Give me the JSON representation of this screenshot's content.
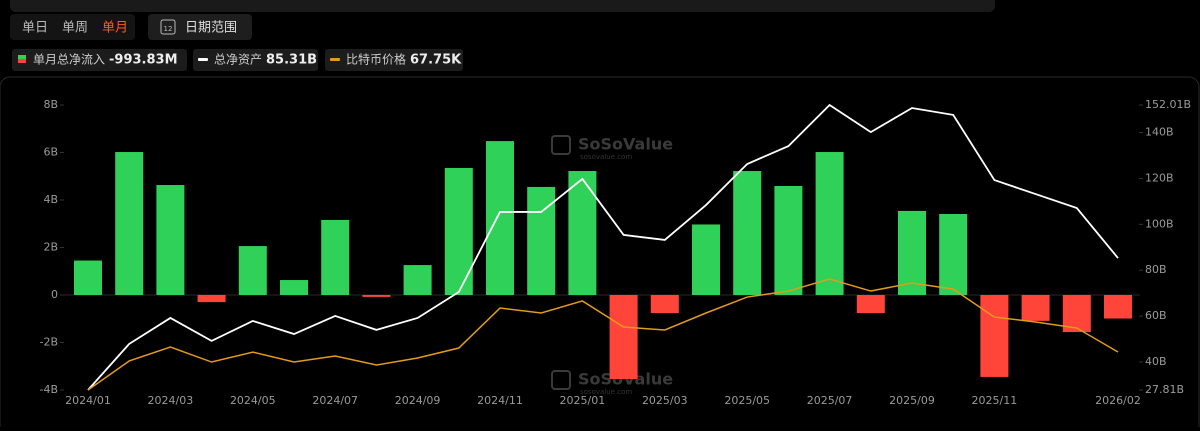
{
  "toolbar": {
    "tabs": [
      "单日",
      "单周",
      "单月"
    ],
    "active_tab": 2,
    "date_button": "日期范围",
    "calendar_day": "12"
  },
  "chart_data": {
    "type": "bar_line",
    "legend": [
      {
        "name": "单月总净流入",
        "value_label": "-993.83M"
      },
      {
        "name": "总净资产",
        "value_label": "85.31B"
      },
      {
        "name": "比特币价格",
        "value_label": "67.75K"
      }
    ],
    "watermark": "SoSoValue",
    "watermark_sub": "sosovalue.com",
    "categories": [
      "2024/01",
      null,
      "2024/03",
      null,
      "2024/05",
      null,
      "2024/07",
      null,
      "2024/09",
      null,
      "2024/11",
      null,
      "2025/01",
      null,
      "2025/03",
      null,
      "2025/05",
      null,
      "2025/07",
      null,
      "2025/09",
      null,
      "2025/11",
      null,
      null,
      "2026/02"
    ],
    "ylim": [
      -4,
      8
    ],
    "yticks": [
      {
        "value": 8,
        "label": "8B"
      },
      {
        "value": 6,
        "label": "6B"
      },
      {
        "value": 4,
        "label": "4B"
      },
      {
        "value": 2,
        "label": "2B"
      },
      0,
      {
        "value": -2,
        "label": "-2B"
      },
      {
        "value": -4,
        "label": "-4B"
      }
    ],
    "y2lim": [
      27.81,
      152.01
    ],
    "y2ticks": [
      {
        "value": 152.01,
        "label": "152.01B"
      },
      {
        "value": 140,
        "label": "140B"
      },
      {
        "value": 120,
        "label": "120B"
      },
      {
        "value": 100,
        "label": "100B"
      },
      {
        "value": 80,
        "label": "80B"
      },
      {
        "value": 60,
        "label": "60B"
      },
      {
        "value": 40,
        "label": "40B"
      },
      {
        "value": 27.81,
        "label": "27.81B"
      }
    ],
    "y3lim": [
      42.5,
      232
    ],
    "positive_color": "#30d158",
    "negative_color": "#ff453a",
    "series": [
      {
        "name": "单月总净流入",
        "kind": "bar",
        "values": [
          1.45,
          6.02,
          4.63,
          -0.3,
          2.06,
          0.63,
          3.16,
          -0.08,
          1.26,
          5.35,
          6.48,
          4.55,
          5.22,
          -3.54,
          -0.76,
          2.97,
          5.22,
          4.59,
          6.02,
          -0.76,
          3.54,
          3.41,
          -3.45,
          -1.09,
          -1.56,
          -0.99
        ]
      },
      {
        "name": "总净资产",
        "kind": "line",
        "axis": "y2",
        "color": "#ffffff",
        "values": [
          27.81,
          47.9,
          59.2,
          49.2,
          57.9,
          52.2,
          60.1,
          54.0,
          59.2,
          70.5,
          105.4,
          105.4,
          119.8,
          95.4,
          93.2,
          108.4,
          126.3,
          134.1,
          152.0,
          140.2,
          150.7,
          147.7,
          119.3,
          113.2,
          107.1,
          85.31
        ]
      },
      {
        "name": "比特币价格",
        "kind": "line",
        "axis": "y3",
        "color": "#e39b1b",
        "values": [
          42.5,
          61.8,
          71.1,
          61.1,
          67.7,
          61.1,
          65.1,
          59.1,
          63.8,
          70.4,
          97.0,
          93.7,
          101.7,
          84.4,
          82.4,
          93.7,
          104.3,
          108.3,
          116.3,
          108.3,
          113.6,
          109.6,
          91.0,
          87.7,
          83.7,
          67.75
        ]
      }
    ]
  }
}
